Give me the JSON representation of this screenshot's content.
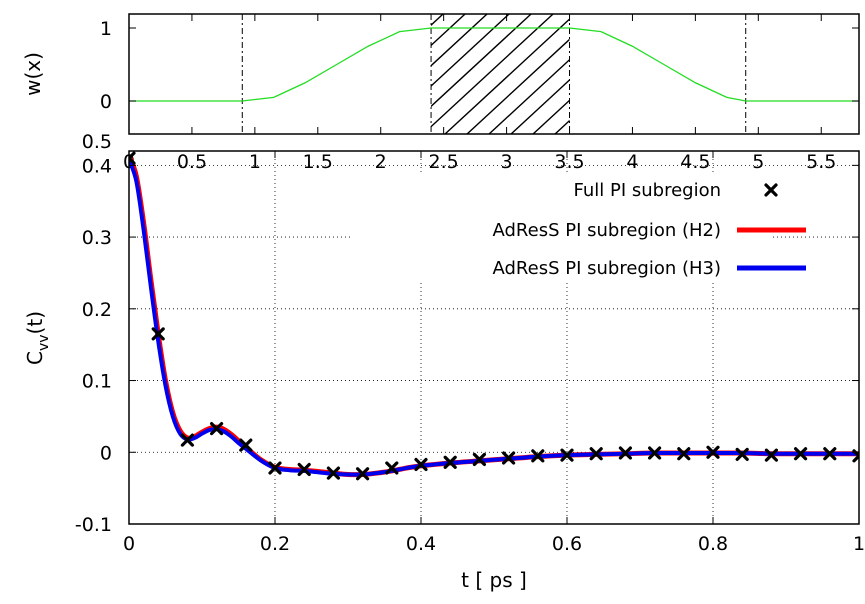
{
  "chart_data": [
    {
      "type": "line",
      "title": "",
      "xlabel": "",
      "ylabel": "w(x)",
      "xlim": [
        0,
        5.8
      ],
      "ylim": [
        0,
        1.0
      ],
      "grid": false,
      "xticks": [
        "0",
        "0.5",
        "1",
        "1.5",
        "2",
        "2.5",
        "3",
        "3.5",
        "4",
        "4.5",
        "5",
        "5.5"
      ],
      "yticks": [
        "0",
        "1"
      ],
      "extra_ytick_label": "0.5",
      "series": [
        {
          "name": "",
          "color": "#22dd22",
          "x": [
            0,
            0.9,
            1.15,
            1.4,
            1.65,
            1.9,
            2.15,
            2.4,
            3.5,
            3.75,
            4.0,
            4.25,
            4.5,
            4.75,
            4.9,
            5.8
          ],
          "y": [
            0,
            0,
            0.05,
            0.25,
            0.5,
            0.75,
            0.95,
            1,
            1,
            0.95,
            0.75,
            0.5,
            0.25,
            0.05,
            0,
            0
          ]
        }
      ],
      "vlines_dashed": [
        0.9,
        2.4,
        3.5,
        4.9
      ],
      "hatched_region": [
        2.4,
        3.5
      ]
    },
    {
      "type": "line",
      "title": "",
      "xlabel": "t [ ps ]",
      "ylabel": "C",
      "ylabel_sub": "vv",
      "ylabel_suffix": "(t)",
      "xlim": [
        0,
        1
      ],
      "ylim": [
        -0.1,
        0.42
      ],
      "grid": true,
      "legend_position": "top-right",
      "xticks": [
        "0",
        "0.2",
        "0.4",
        "0.6",
        "0.8",
        "1"
      ],
      "yticks": [
        "-0.1",
        "0",
        "0.1",
        "0.2",
        "0.3",
        "0.4"
      ],
      "series": [
        {
          "name": "Full PI subregion",
          "color": "#000000",
          "marker": "x",
          "x": [
            0,
            0.04,
            0.08,
            0.12,
            0.16,
            0.2,
            0.24,
            0.28,
            0.32,
            0.36,
            0.4,
            0.44,
            0.48,
            0.52,
            0.56,
            0.6,
            0.64,
            0.68,
            0.72,
            0.76,
            0.8,
            0.84,
            0.88,
            0.92,
            0.96,
            1.0
          ],
          "y": [
            0.41,
            0.165,
            0.017,
            0.033,
            0.01,
            -0.022,
            -0.024,
            -0.029,
            -0.03,
            -0.022,
            -0.017,
            -0.014,
            -0.01,
            -0.008,
            -0.005,
            -0.004,
            -0.002,
            -0.001,
            -0.001,
            -0.002,
            0.0,
            -0.003,
            -0.004,
            -0.002,
            -0.002,
            -0.005
          ]
        },
        {
          "name": "AdResS PI subregion (H2)",
          "color": "#ff0000",
          "marker": "none",
          "x": [
            0,
            0.01,
            0.02,
            0.03,
            0.04,
            0.05,
            0.06,
            0.07,
            0.08,
            0.09,
            0.1,
            0.11,
            0.12,
            0.13,
            0.14,
            0.15,
            0.16,
            0.18,
            0.2,
            0.22,
            0.24,
            0.26,
            0.28,
            0.3,
            0.32,
            0.34,
            0.36,
            0.38,
            0.4,
            0.44,
            0.48,
            0.52,
            0.56,
            0.6,
            0.64,
            0.68,
            0.72,
            0.76,
            0.8,
            0.84,
            0.88,
            0.92,
            0.96,
            1.0
          ],
          "y": [
            0.413,
            0.385,
            0.32,
            0.24,
            0.165,
            0.1,
            0.055,
            0.03,
            0.02,
            0.022,
            0.028,
            0.033,
            0.035,
            0.032,
            0.025,
            0.016,
            0.007,
            -0.01,
            -0.021,
            -0.024,
            -0.025,
            -0.027,
            -0.029,
            -0.031,
            -0.031,
            -0.029,
            -0.026,
            -0.022,
            -0.019,
            -0.015,
            -0.012,
            -0.009,
            -0.006,
            -0.004,
            -0.003,
            -0.002,
            -0.001,
            -0.001,
            -0.001,
            -0.001,
            -0.002,
            -0.002,
            -0.002,
            -0.002
          ]
        },
        {
          "name": "AdResS PI subregion (H3)",
          "color": "#0000ee",
          "marker": "none",
          "x": [
            0,
            0.01,
            0.02,
            0.03,
            0.04,
            0.05,
            0.06,
            0.07,
            0.08,
            0.09,
            0.1,
            0.11,
            0.12,
            0.13,
            0.14,
            0.15,
            0.16,
            0.18,
            0.2,
            0.22,
            0.24,
            0.26,
            0.28,
            0.3,
            0.32,
            0.34,
            0.36,
            0.38,
            0.4,
            0.44,
            0.48,
            0.52,
            0.56,
            0.6,
            0.64,
            0.68,
            0.72,
            0.76,
            0.8,
            0.84,
            0.88,
            0.92,
            0.96,
            1.0
          ],
          "y": [
            0.408,
            0.378,
            0.31,
            0.23,
            0.155,
            0.093,
            0.05,
            0.026,
            0.018,
            0.02,
            0.026,
            0.031,
            0.032,
            0.029,
            0.022,
            0.013,
            0.005,
            -0.011,
            -0.022,
            -0.025,
            -0.026,
            -0.028,
            -0.03,
            -0.031,
            -0.031,
            -0.029,
            -0.026,
            -0.022,
            -0.019,
            -0.015,
            -0.012,
            -0.009,
            -0.006,
            -0.004,
            -0.003,
            -0.002,
            -0.001,
            -0.001,
            -0.001,
            -0.001,
            -0.002,
            -0.002,
            -0.002,
            -0.002
          ]
        }
      ]
    }
  ]
}
